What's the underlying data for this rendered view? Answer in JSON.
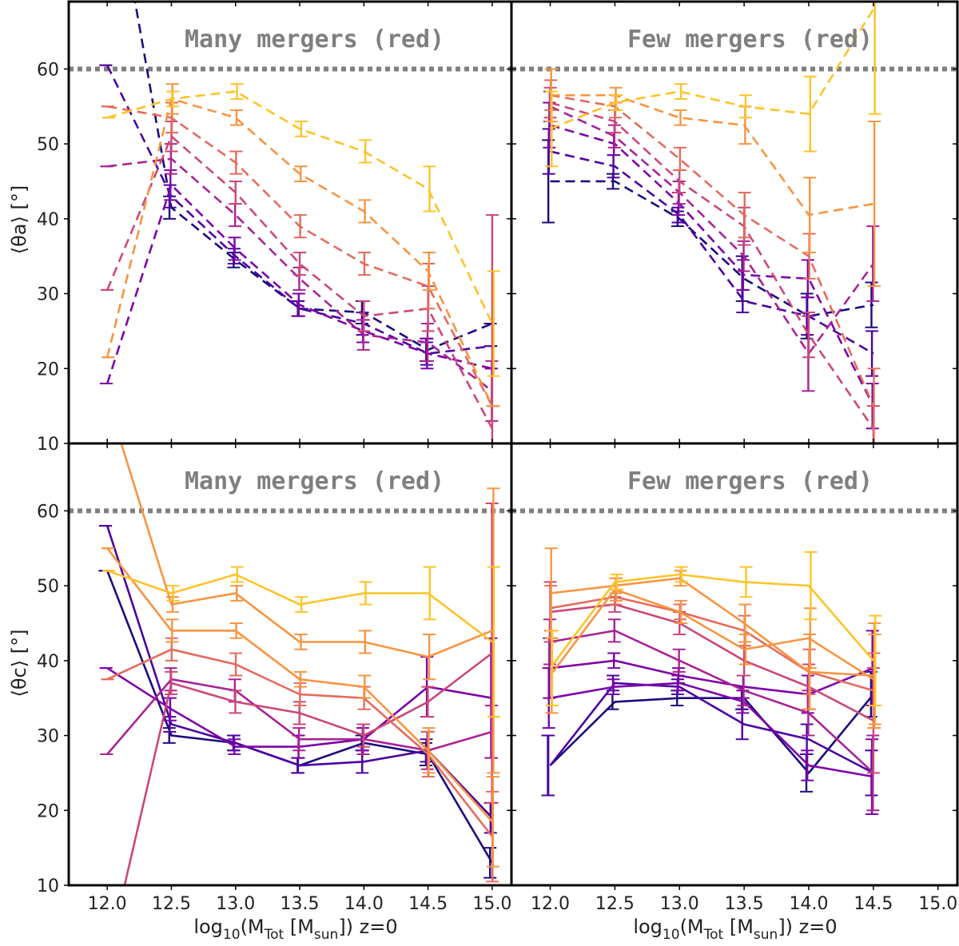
{
  "x_ticks": [
    "12.0",
    "12.5",
    "13.0",
    "13.5",
    "14.0",
    "14.5",
    "15.0"
  ],
  "y_ticks": [
    "10",
    "20",
    "30",
    "40",
    "50",
    "60"
  ],
  "xlabel": "log10(MTot [Msun]) z=0",
  "xlabel_parts": {
    "pre": "log",
    "sub1": "10",
    "mid": "(M",
    "sub2": "Tot",
    "post": " [M",
    "sub3": "sun",
    "end": "]) z=0"
  },
  "ylabel_top": "⟨θa⟩ [°]",
  "ylabel_bottom": "⟨θc⟩ [°]",
  "palette": [
    "#1b0c7f",
    "#4c02a1",
    "#7e03a8",
    "#a92395",
    "#cc4778",
    "#e56b5d",
    "#f89441",
    "#fdc328"
  ],
  "reference_line": {
    "y": 60,
    "color": "#808080",
    "style": "dotted"
  },
  "chart_data": [
    {
      "type": "line",
      "panel": "top-left",
      "annotation": "Many mergers (red)",
      "line_style": "dashed",
      "x": [
        12.0,
        12.5,
        13.0,
        13.5,
        14.0,
        14.5,
        15.0
      ],
      "xlim": [
        11.7,
        15.15
      ],
      "ylim": [
        10,
        69
      ],
      "series": [
        {
          "color": "#1b0c7f",
          "values": [
            90,
            41.5,
            34.5,
            28.0,
            27.5,
            22.5,
            26.0
          ],
          "errors": [
            0,
            1.5,
            1.0,
            1.0,
            1.5,
            1.5,
            0
          ]
        },
        {
          "color": "#4c02a1",
          "values": [
            60.5,
            43.0,
            35.0,
            28.0,
            26.0,
            22.0,
            23.0
          ],
          "errors": [
            0,
            1.5,
            1.0,
            1.0,
            1.5,
            1.5,
            0
          ]
        },
        {
          "color": "#7e03a8",
          "values": [
            18.0,
            44.5,
            36.0,
            28.5,
            25.0,
            22.0,
            20.0
          ],
          "errors": [
            0,
            2.0,
            1.5,
            1.5,
            1.5,
            2.0,
            0
          ]
        },
        {
          "color": "#a92395",
          "values": [
            47.0,
            48.0,
            40.5,
            32.0,
            24.5,
            23.5,
            17.0
          ],
          "errors": [
            0,
            2.0,
            1.5,
            1.5,
            2.0,
            2.5,
            4.0
          ]
        },
        {
          "color": "#cc4778",
          "values": [
            30.5,
            51.0,
            43.5,
            34.0,
            27.0,
            28.0,
            12.0
          ],
          "errors": [
            0,
            2.0,
            1.5,
            1.5,
            2.0,
            3.0,
            28.5
          ]
        },
        {
          "color": "#e56b5d",
          "values": [
            55.0,
            53.5,
            47.5,
            39.0,
            34.0,
            31.0,
            15.0
          ],
          "errors": [
            0,
            2.0,
            1.5,
            1.5,
            1.5,
            3.0,
            0
          ]
        },
        {
          "color": "#f89441",
          "values": [
            21.5,
            56.0,
            53.5,
            46.0,
            41.0,
            33.0,
            15.0
          ],
          "errors": [
            0,
            2.0,
            1.0,
            1.0,
            1.5,
            2.5,
            0
          ]
        },
        {
          "color": "#fdc328",
          "values": [
            53.5,
            56.0,
            57.0,
            52.0,
            49.0,
            44.0,
            26.0
          ],
          "errors": [
            0,
            1.0,
            1.0,
            1.0,
            1.5,
            3.0,
            7.0
          ]
        }
      ]
    },
    {
      "type": "line",
      "panel": "top-right",
      "annotation": "Few mergers (red)",
      "line_style": "dashed",
      "x": [
        12.0,
        12.5,
        13.0,
        13.5,
        14.0,
        14.5
      ],
      "xlim": [
        11.7,
        15.15
      ],
      "ylim": [
        10,
        69
      ],
      "series": [
        {
          "color": "#1b0c7f",
          "values": [
            45.0,
            45.0,
            40.0,
            32.0,
            27.0,
            28.5
          ],
          "errors": [
            5.5,
            1.0,
            1.0,
            3.0,
            3.0,
            3.0
          ]
        },
        {
          "color": "#4c02a1",
          "values": [
            49.0,
            47.0,
            40.5,
            29.0,
            27.0,
            22.0
          ],
          "errors": [
            3.0,
            1.5,
            1.0,
            1.5,
            2.5,
            3.0
          ]
        },
        {
          "color": "#7e03a8",
          "values": [
            52.5,
            50.0,
            42.0,
            32.5,
            32.0,
            15.0
          ],
          "errors": [
            3.0,
            1.5,
            1.5,
            2.0,
            2.5,
            3.0
          ]
        },
        {
          "color": "#a92395",
          "values": [
            55.0,
            51.0,
            43.5,
            35.0,
            22.0,
            34.0
          ],
          "errors": [
            2.0,
            1.5,
            1.5,
            2.0,
            5.0,
            5.0
          ]
        },
        {
          "color": "#cc4778",
          "values": [
            55.5,
            53.0,
            45.0,
            39.0,
            24.5,
            12.0
          ],
          "errors": [
            2.0,
            1.5,
            1.5,
            2.5,
            3.0,
            3.0
          ]
        },
        {
          "color": "#e56b5d",
          "values": [
            56.5,
            55.0,
            48.0,
            40.5,
            35.0,
            15.0
          ],
          "errors": [
            2.0,
            1.5,
            1.5,
            3.0,
            3.0,
            5.0
          ]
        },
        {
          "color": "#f89441",
          "values": [
            56.5,
            56.5,
            53.5,
            52.5,
            40.5,
            42.0
          ],
          "errors": [
            3.5,
            1.0,
            1.0,
            2.5,
            5.0,
            11.0
          ]
        },
        {
          "color": "#fdc328",
          "values": [
            52.0,
            55.5,
            57.0,
            55.0,
            54.0,
            68.0
          ],
          "errors": [
            5.0,
            1.0,
            1.0,
            1.5,
            5.0,
            14.0
          ]
        }
      ]
    },
    {
      "type": "line",
      "panel": "bottom-left",
      "annotation": "Many mergers (red)",
      "line_style": "solid",
      "x": [
        12.0,
        12.5,
        13.0,
        13.5,
        14.0,
        14.5,
        15.0
      ],
      "xlim": [
        11.7,
        15.15
      ],
      "ylim": [
        10,
        69
      ],
      "series": [
        {
          "color": "#1b0c7f",
          "values": [
            52.0,
            30.0,
            29.0,
            26.0,
            29.0,
            27.5,
            13.0
          ],
          "errors": [
            0,
            1.0,
            1.0,
            1.0,
            1.0,
            1.5,
            2.0
          ]
        },
        {
          "color": "#4c02a1",
          "values": [
            58.0,
            31.5,
            29.0,
            26.0,
            26.5,
            28.0,
            19.0
          ],
          "errors": [
            0,
            1.0,
            1.0,
            1.0,
            1.5,
            1.5,
            2.0
          ]
        },
        {
          "color": "#7e03a8",
          "values": [
            39.0,
            33.5,
            28.5,
            28.5,
            29.5,
            36.5,
            35.0
          ],
          "errors": [
            0,
            1.5,
            1.0,
            1.5,
            1.5,
            4.0,
            8.0
          ]
        },
        {
          "color": "#a92395",
          "values": [
            27.5,
            37.5,
            36.0,
            29.5,
            29.5,
            28.0,
            30.5
          ],
          "errors": [
            0,
            1.5,
            1.5,
            1.5,
            2.0,
            2.5,
            3.5
          ]
        },
        {
          "color": "#cc4778",
          "values": [
            0.0,
            37.0,
            34.5,
            33.0,
            30.0,
            34.5,
            41.0
          ],
          "errors": [
            0,
            1.5,
            1.5,
            1.5,
            1.5,
            2.0,
            20.0
          ]
        },
        {
          "color": "#e56b5d",
          "values": [
            37.5,
            41.5,
            39.5,
            35.5,
            35.0,
            27.5,
            16.5
          ],
          "errors": [
            0,
            1.5,
            1.5,
            1.5,
            1.5,
            3.0,
            6.0
          ]
        },
        {
          "color": "#f89441",
          "values": [
            55.0,
            44.0,
            44.0,
            37.5,
            36.5,
            28.0,
            18.5
          ],
          "errors": [
            0,
            1.5,
            1.0,
            1.0,
            1.5,
            3.0,
            6.0
          ]
        },
        {
          "color": "#f89441",
          "values": [
            75.0,
            47.5,
            49.0,
            42.5,
            42.5,
            40.5,
            44.0
          ],
          "errors": [
            0,
            1.0,
            1.0,
            1.0,
            1.5,
            3.0,
            19.0
          ]
        },
        {
          "color": "#fdc328",
          "values": [
            52.0,
            49.0,
            51.5,
            47.5,
            49.0,
            49.0,
            42.5
          ],
          "errors": [
            0,
            1.0,
            1.0,
            1.0,
            1.5,
            3.5,
            10.0
          ]
        }
      ]
    },
    {
      "type": "line",
      "panel": "bottom-right",
      "annotation": "Few mergers (red)",
      "line_style": "solid",
      "x": [
        12.0,
        12.5,
        13.0,
        13.5,
        14.0,
        14.5
      ],
      "xlim": [
        11.7,
        15.15
      ],
      "ylim": [
        10,
        69
      ],
      "series": [
        {
          "color": "#1b0c7f",
          "values": [
            26.0,
            34.5,
            35.0,
            35.0,
            25.0,
            35.5
          ],
          "errors": [
            4.0,
            1.0,
            1.0,
            1.5,
            2.5,
            3.0
          ]
        },
        {
          "color": "#4c02a1",
          "values": [
            26.0,
            37.0,
            36.5,
            31.5,
            29.5,
            25.0
          ],
          "errors": [
            4.0,
            1.0,
            1.0,
            2.0,
            2.0,
            3.0
          ]
        },
        {
          "color": "#7e03a8",
          "values": [
            35.0,
            36.5,
            37.0,
            34.5,
            26.0,
            24.5
          ],
          "errors": [
            4.0,
            1.0,
            1.0,
            1.5,
            2.0,
            5.0
          ]
        },
        {
          "color": "#7e03a8",
          "values": [
            39.0,
            40.0,
            38.0,
            36.5,
            35.5,
            39.0
          ],
          "errors": [
            4.0,
            1.0,
            1.0,
            1.5,
            2.5,
            5.0
          ]
        },
        {
          "color": "#a92395",
          "values": [
            42.5,
            44.0,
            40.0,
            36.0,
            33.0,
            25.0
          ],
          "errors": [
            3.0,
            1.5,
            1.5,
            2.0,
            3.0,
            5.0
          ]
        },
        {
          "color": "#cc4778",
          "values": [
            46.5,
            47.5,
            45.0,
            40.0,
            36.5,
            32.0
          ],
          "errors": [
            4.0,
            1.0,
            1.5,
            2.0,
            3.0,
            7.0
          ]
        },
        {
          "color": "#e56b5d",
          "values": [
            47.0,
            48.5,
            46.5,
            44.0,
            38.5,
            36.0
          ],
          "errors": [
            3.0,
            1.0,
            1.0,
            2.0,
            3.0,
            5.0
          ]
        },
        {
          "color": "#f89441",
          "values": [
            49.0,
            50.0,
            51.0,
            45.0,
            38.5,
            38.0
          ],
          "errors": [
            6.0,
            1.0,
            1.0,
            2.5,
            5.0,
            7.0
          ]
        },
        {
          "color": "#f89441",
          "values": [
            38.0,
            49.5,
            46.5,
            41.5,
            43.0,
            37.5
          ],
          "errors": [
            5.0,
            1.5,
            1.5,
            2.0,
            4.0,
            6.0
          ]
        },
        {
          "color": "#fdc328",
          "values": [
            39.0,
            50.5,
            51.5,
            50.5,
            50.0,
            40.0
          ],
          "errors": [
            5.0,
            1.0,
            1.0,
            2.0,
            4.5,
            6.0
          ]
        }
      ]
    }
  ]
}
